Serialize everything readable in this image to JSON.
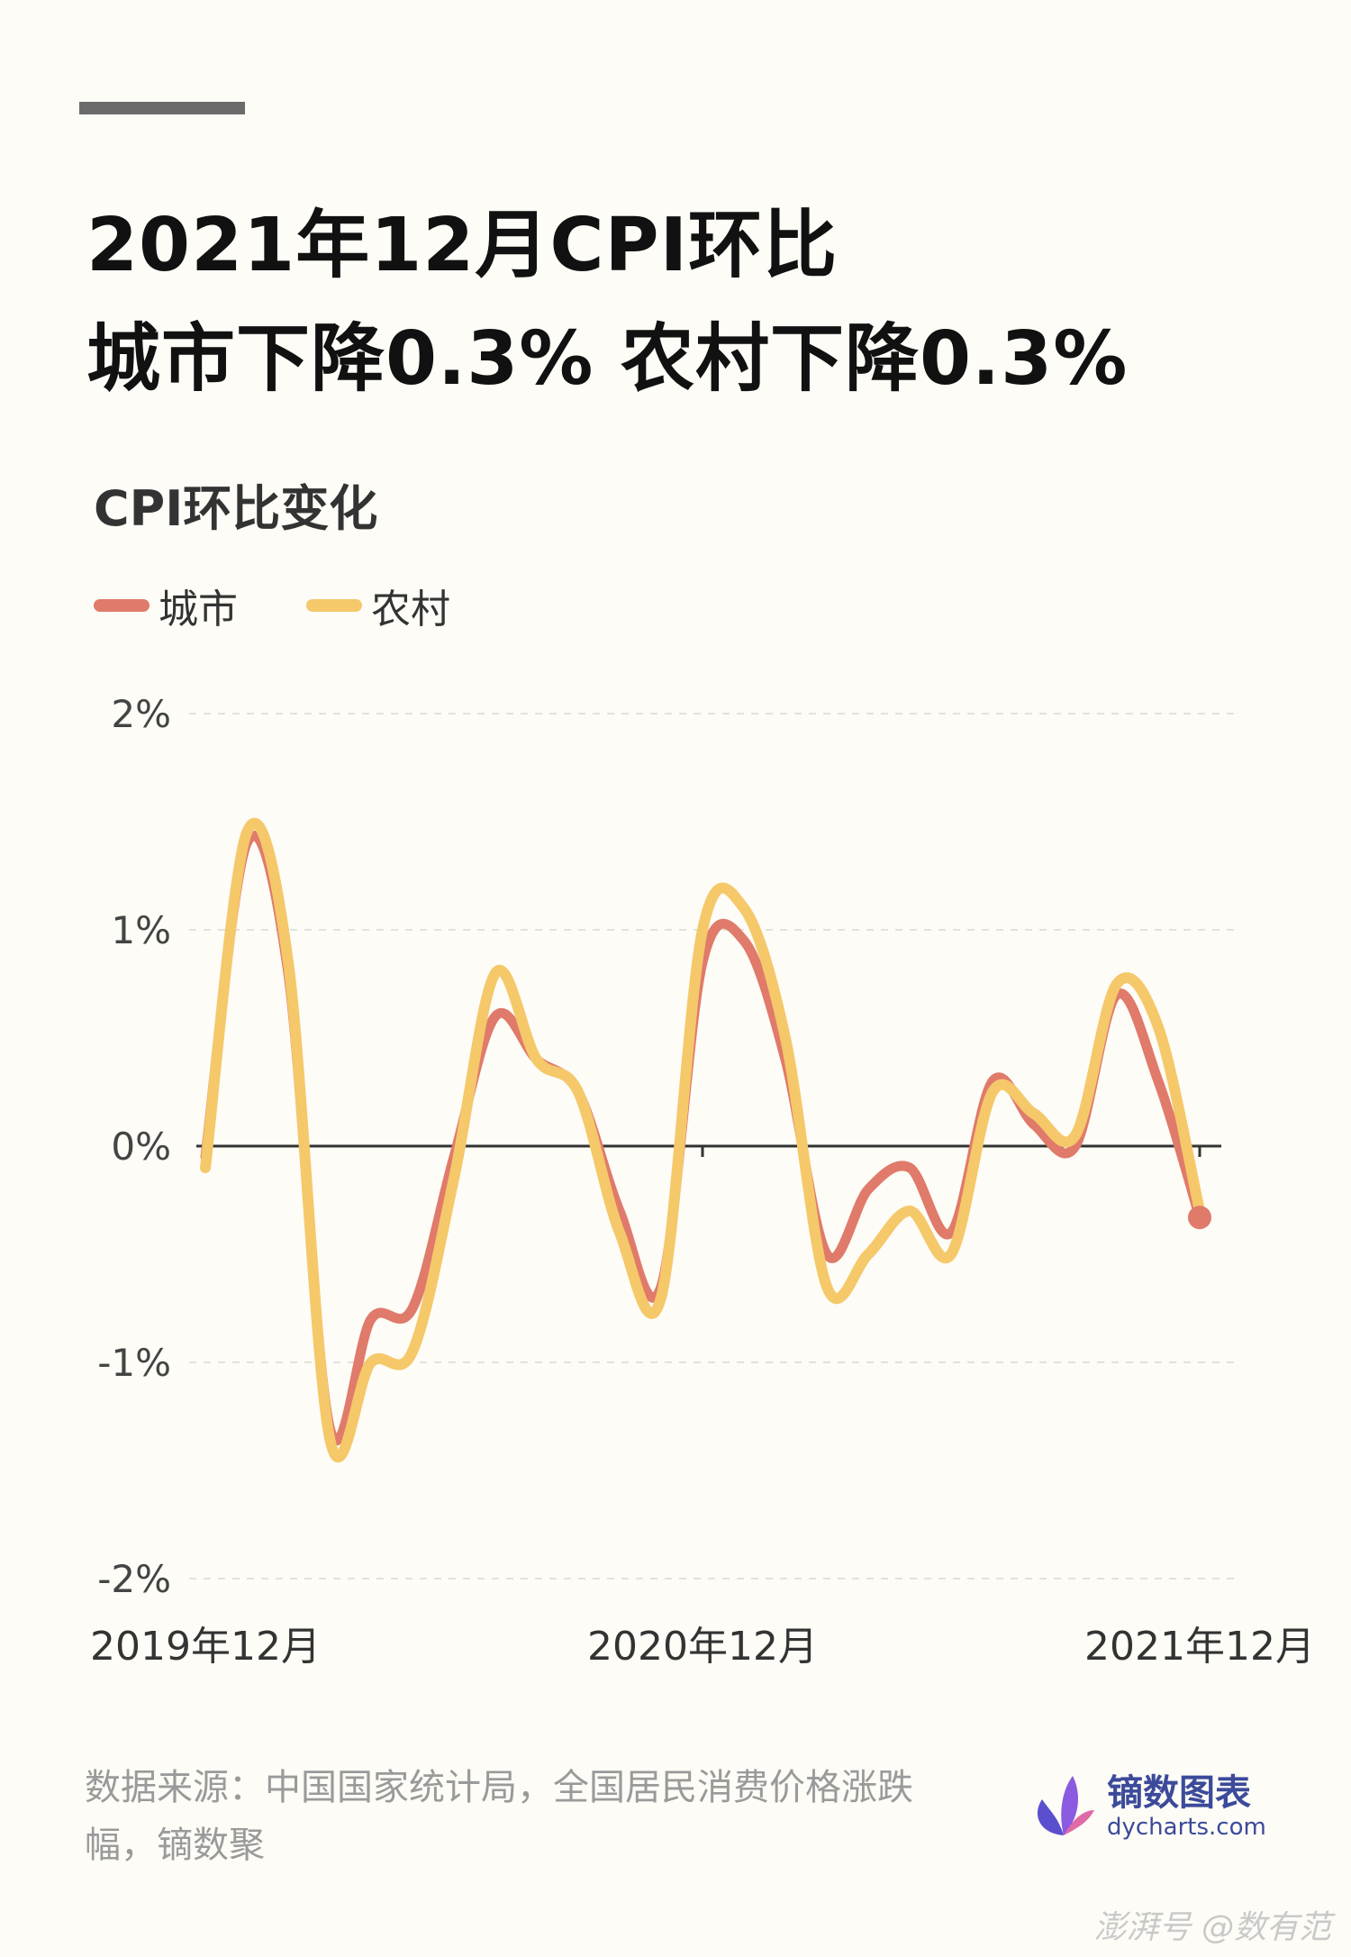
{
  "title": {
    "line1": "2021年12月CPI环比",
    "line2": "城市下降0.3%  农村下降0.3%"
  },
  "chart_title": "CPI环比变化",
  "source_text": "数据来源：中国国家统计局，全国居民消费价格涨跌幅，镝数聚",
  "brand": {
    "name": "镝数图表",
    "url": "dycharts.com"
  },
  "watermark": "澎湃号 @数有范",
  "chart_data": {
    "type": "line",
    "title": "CPI环比变化",
    "xlabel": "",
    "ylabel": "",
    "ylim": [
      -2,
      2
    ],
    "y_ticks": [
      "2%",
      "1%",
      "0%",
      "-1%",
      "-2%"
    ],
    "x_tick_labels": [
      "2019年12月",
      "2020年12月",
      "2021年12月"
    ],
    "x_tick_positions": [
      0,
      12,
      24
    ],
    "x": [
      "2019年12月",
      "2020年1月",
      "2020年2月",
      "2020年3月",
      "2020年4月",
      "2020年5月",
      "2020年6月",
      "2020年7月",
      "2020年8月",
      "2020年9月",
      "2020年10月",
      "2020年11月",
      "2020年12月",
      "2021年1月",
      "2021年2月",
      "2021年3月",
      "2021年4月",
      "2021年5月",
      "2021年6月",
      "2021年7月",
      "2021年8月",
      "2021年9月",
      "2021年10月",
      "2021年11月",
      "2021年12月"
    ],
    "grid": true,
    "legend": "top-left",
    "series": [
      {
        "name": "城市",
        "color": "#e07a6a",
        "values": [
          -0.05,
          1.4,
          0.8,
          -1.3,
          -0.8,
          -0.75,
          -0.05,
          0.6,
          0.4,
          0.25,
          -0.3,
          -0.65,
          0.85,
          0.95,
          0.4,
          -0.5,
          -0.2,
          -0.1,
          -0.4,
          0.3,
          0.1,
          0.0,
          0.7,
          0.3,
          -0.33
        ]
      },
      {
        "name": "农村",
        "color": "#f5c86a",
        "values": [
          -0.1,
          1.45,
          0.85,
          -1.35,
          -1.0,
          -0.95,
          -0.15,
          0.8,
          0.4,
          0.25,
          -0.4,
          -0.7,
          1.0,
          1.1,
          0.5,
          -0.65,
          -0.5,
          -0.3,
          -0.5,
          0.25,
          0.15,
          0.05,
          0.75,
          0.55,
          -0.3
        ]
      }
    ]
  }
}
